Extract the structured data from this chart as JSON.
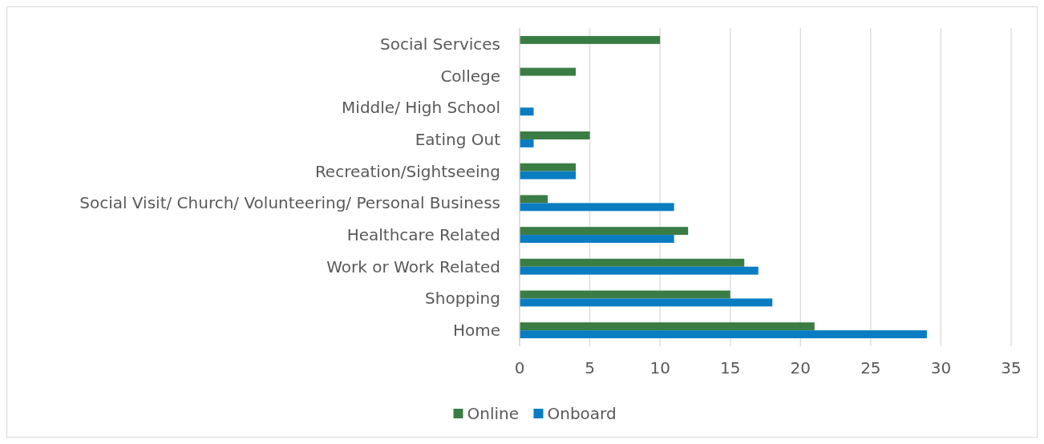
{
  "chart_data": {
    "type": "bar",
    "orientation": "horizontal",
    "categories": [
      "Social Services",
      "College",
      "Middle/ High School",
      "Eating Out",
      "Recreation/Sightseeing",
      "Social Visit/ Church/ Volunteering/ Personal Business",
      "Healthcare Related",
      "Work or Work Related",
      "Shopping",
      "Home"
    ],
    "series": [
      {
        "name": "Online",
        "color": "#3a7d44",
        "values": [
          10,
          4,
          null,
          5,
          4,
          2,
          12,
          16,
          15,
          21
        ]
      },
      {
        "name": "Onboard",
        "color": "#0a7dc2",
        "values": [
          null,
          null,
          1,
          1,
          4,
          11,
          11,
          17,
          18,
          29
        ]
      }
    ],
    "xlim": [
      0,
      35
    ],
    "xticks": [
      0,
      5,
      10,
      15,
      20,
      25,
      30,
      35
    ],
    "grid": "x",
    "legend": "bottom"
  }
}
